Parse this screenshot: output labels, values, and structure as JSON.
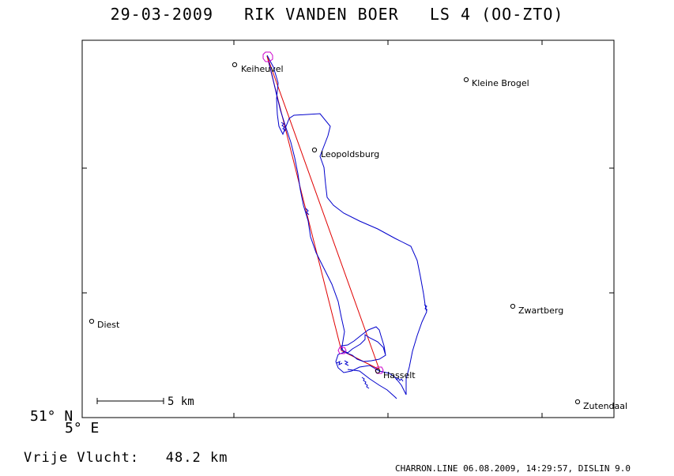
{
  "header": {
    "date": "29-03-2009",
    "pilot": "RIK VANDEN BOER",
    "glider": "LS 4 (OO-ZTO)"
  },
  "map": {
    "towns": [
      {
        "name": "Keiheuvel"
      },
      {
        "name": "Kleine Brogel"
      },
      {
        "name": "Leopoldsburg"
      },
      {
        "name": "Diest"
      },
      {
        "name": "Zwartberg"
      },
      {
        "name": "Hasselt"
      },
      {
        "name": "Zutendaal"
      }
    ],
    "scale_label": "5 km",
    "lat_label": "51° N",
    "lon_label": "5° E",
    "colors": {
      "track": "#0000cc",
      "task": "#e00000",
      "turnpoint": "#cc00cc",
      "frame": "#000000"
    }
  },
  "flight": {
    "label": "Vrije Vlucht:",
    "distance": "48.2 km"
  },
  "footer": "CHARRON.LINE 06.08.2009, 14:29:57, DISLIN 9.0"
}
